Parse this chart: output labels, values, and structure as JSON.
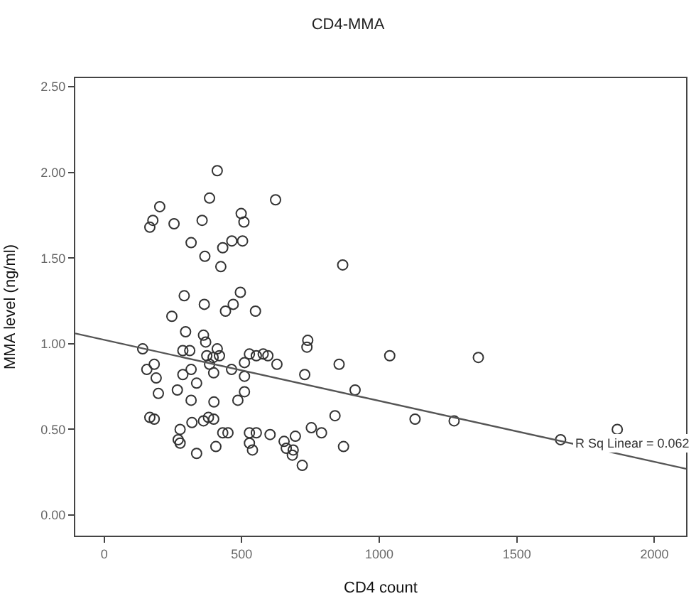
{
  "chart_data": {
    "type": "scatter",
    "title": "CD4-MMA",
    "xlabel": "CD4 count",
    "ylabel": "MMA level (ng/ml)",
    "xlim": [
      -105,
      2115
    ],
    "ylim": [
      -0.12,
      2.55
    ],
    "xticks": [
      0,
      500,
      1000,
      1500,
      2000
    ],
    "yticks": [
      {
        "value": 0,
        "label": "0.00"
      },
      {
        "value": 0.5,
        "label": "0.50"
      },
      {
        "value": 1,
        "label": "1.00"
      },
      {
        "value": 1.5,
        "label": "1.50"
      },
      {
        "value": 2,
        "label": "2.00"
      },
      {
        "value": 2.5,
        "label": "2.50"
      }
    ],
    "annotations": [
      {
        "text": "R Sq Linear = 0.062",
        "x": 1700,
        "y": 0.42
      }
    ],
    "series": [
      {
        "color": "#333333",
        "marker": "circle",
        "x": [
          411,
          202,
          383,
          623,
          177,
          166,
          254,
          356,
          498,
          508,
          316,
          366,
          431,
          464,
          503,
          424,
          867,
          291,
          495,
          364,
          469,
          441,
          550,
          246,
          296,
          140,
          155,
          182,
          189,
          197,
          166,
          182,
          266,
          286,
          286,
          311,
          316,
          336,
          316,
          361,
          369,
          373,
          383,
          396,
          411,
          419,
          398,
          399,
          379,
          398,
          361,
          319,
          276,
          269,
          276,
          336,
          406,
          431,
          450,
          463,
          510,
          510,
          486,
          510,
          528,
          553,
          578,
          595,
          628,
          528,
          553,
          528,
          539,
          603,
          654,
          662,
          687,
          684,
          695,
          720,
          729,
          737,
          740,
          753,
          790,
          839,
          854,
          870,
          912,
          1038,
          1360,
          1130,
          1272,
          1659,
          1865
        ],
        "values": [
          2.01,
          1.8,
          1.85,
          1.84,
          1.72,
          1.68,
          1.7,
          1.72,
          1.76,
          1.71,
          1.59,
          1.51,
          1.56,
          1.6,
          1.6,
          1.45,
          1.46,
          1.28,
          1.3,
          1.23,
          1.23,
          1.19,
          1.19,
          1.16,
          1.07,
          0.97,
          0.85,
          0.88,
          0.8,
          0.71,
          0.57,
          0.56,
          0.73,
          0.82,
          0.96,
          0.96,
          0.85,
          0.77,
          0.67,
          1.05,
          1.01,
          0.93,
          0.88,
          0.92,
          0.97,
          0.93,
          0.83,
          0.66,
          0.57,
          0.56,
          0.55,
          0.54,
          0.5,
          0.44,
          0.42,
          0.36,
          0.4,
          0.48,
          0.48,
          0.85,
          0.81,
          0.72,
          0.67,
          0.89,
          0.94,
          0.93,
          0.94,
          0.93,
          0.88,
          0.48,
          0.48,
          0.42,
          0.38,
          0.47,
          0.43,
          0.39,
          0.38,
          0.35,
          0.46,
          0.29,
          0.82,
          0.98,
          1.02,
          0.51,
          0.48,
          0.58,
          0.88,
          0.4,
          0.73,
          0.93,
          0.92,
          0.56,
          0.55,
          0.44,
          0.5
        ]
      },
      {
        "type": "line",
        "color": "#555555",
        "marker": "none",
        "x": [
          -105,
          2115
        ],
        "values": [
          1.06,
          0.27
        ]
      }
    ]
  }
}
